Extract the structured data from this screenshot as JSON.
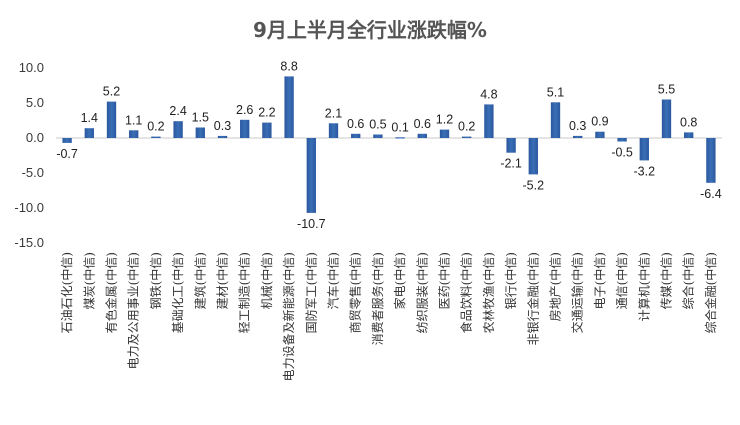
{
  "chart_data": {
    "type": "bar",
    "title": "9月上半月全行业涨跌幅%",
    "xlabel": "",
    "ylabel": "",
    "ylim": [
      -15,
      10
    ],
    "yticks": [
      10.0,
      5.0,
      0.0,
      -5.0,
      -10.0,
      -15.0
    ],
    "ytick_labels": [
      "10.0",
      "5.0",
      "0.0",
      "-5.0",
      "-10.0",
      "-15.0"
    ],
    "grid": false,
    "legend": "none",
    "bar_color": "#3a6fb5",
    "categories": [
      "石油石化(中信)",
      "煤炭(中信)",
      "有色金属(中信)",
      "电力及公用事业(中信)",
      "钢铁(中信)",
      "基础化工(中信)",
      "建筑(中信)",
      "建材(中信)",
      "轻工制造(中信)",
      "机械(中信)",
      "电力设备及新能源(中信)",
      "国防军工(中信)",
      "汽车(中信)",
      "商贸零售(中信)",
      "消费者服务(中信)",
      "家电(中信)",
      "纺织服装(中信)",
      "医药(中信)",
      "食品饮料(中信)",
      "农林牧渔(中信)",
      "银行(中信)",
      "非银行金融(中信)",
      "房地产(中信)",
      "交通运输(中信)",
      "电子(中信)",
      "通信(中信)",
      "计算机(中信)",
      "传媒(中信)",
      "综合(中信)",
      "综合金融(中信)"
    ],
    "values": [
      -0.7,
      1.4,
      5.2,
      1.1,
      0.2,
      2.4,
      1.5,
      0.3,
      2.6,
      2.2,
      8.8,
      -10.7,
      2.1,
      0.6,
      0.5,
      0.1,
      0.6,
      1.2,
      0.2,
      4.8,
      -2.1,
      -5.2,
      5.1,
      0.3,
      0.9,
      -0.5,
      -3.2,
      5.5,
      0.8,
      -6.4
    ],
    "value_labels": [
      "-0.7",
      "1.4",
      "5.2",
      "1.1",
      "0.2",
      "2.4",
      "1.5",
      "0.3",
      "2.6",
      "2.2",
      "8.8",
      "-10.7",
      "2.1",
      "0.6",
      "0.5",
      "0.1",
      "0.6",
      "1.2",
      "0.2",
      "4.8",
      "-2.1",
      "-5.2",
      "5.1",
      "0.3",
      "0.9",
      "-0.5",
      "-3.2",
      "5.5",
      "0.8",
      "-6.4"
    ]
  }
}
